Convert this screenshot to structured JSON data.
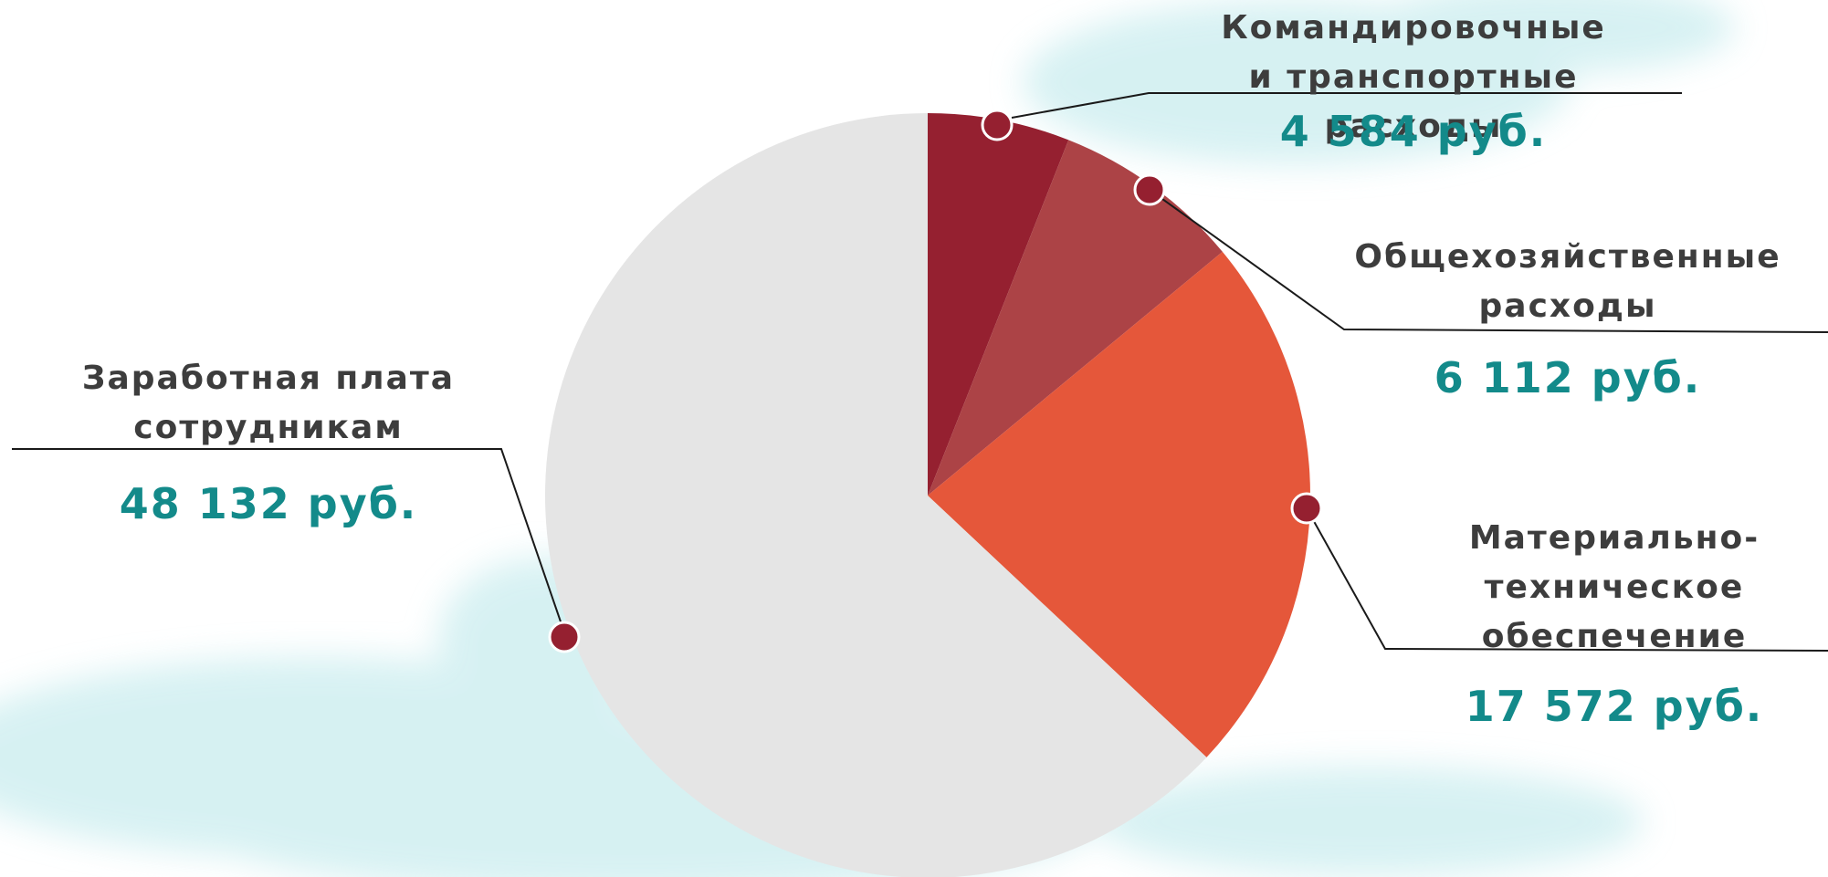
{
  "chart_data": {
    "type": "pie",
    "categories": [
      "Командировочные\nи транспортные расходы",
      "Общехозяйственные\nрасходы",
      "Материально-\nтехническое\nобеспечение",
      "Заработная плата\nсотрудникам"
    ],
    "values": [
      4584,
      6112,
      17572,
      48132
    ],
    "value_labels": [
      "4 584 руб.",
      "6 112 руб.",
      "17 572 руб.",
      "48 132 руб."
    ],
    "colors": [
      "#952030",
      "#ac4346",
      "#e5573a",
      "#e5e5e5"
    ]
  }
}
